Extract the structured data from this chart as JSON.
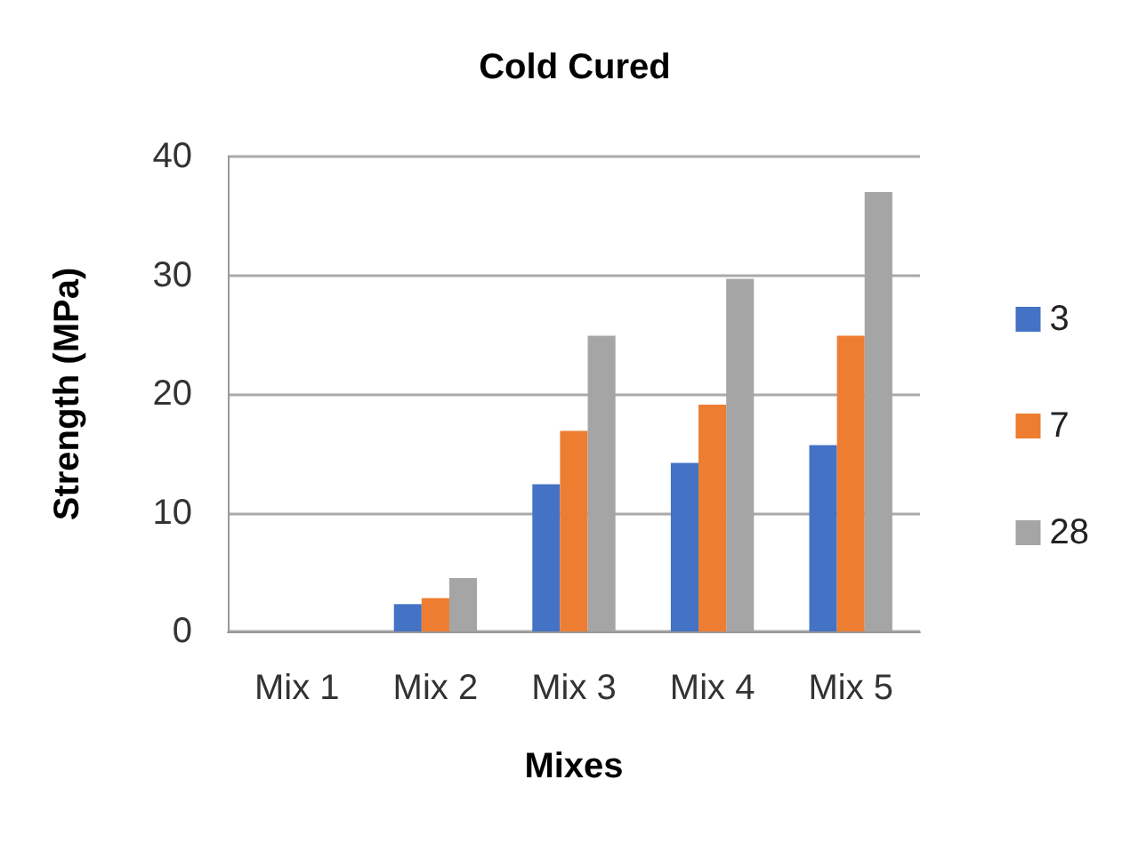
{
  "chart_data": {
    "type": "bar",
    "title": "Cold Cured",
    "xlabel": "Mixes",
    "ylabel": "Strength (MPa)",
    "categories": [
      "Mix 1",
      "Mix 2",
      "Mix 3",
      "Mix 4",
      "Mix 5"
    ],
    "series": [
      {
        "name": "3",
        "color": "#4472c4",
        "values": [
          0,
          2.3,
          12.4,
          14.2,
          15.7
        ]
      },
      {
        "name": "7",
        "color": "#ed7d31",
        "values": [
          0,
          2.8,
          16.9,
          19.1,
          24.9
        ]
      },
      {
        "name": "28",
        "color": "#a5a5a5",
        "values": [
          0,
          4.5,
          24.9,
          29.7,
          37.0
        ]
      }
    ],
    "ylim": [
      0,
      40
    ],
    "yticks": [
      0,
      10,
      20,
      30,
      40
    ],
    "grid": "y",
    "legend": "right"
  }
}
